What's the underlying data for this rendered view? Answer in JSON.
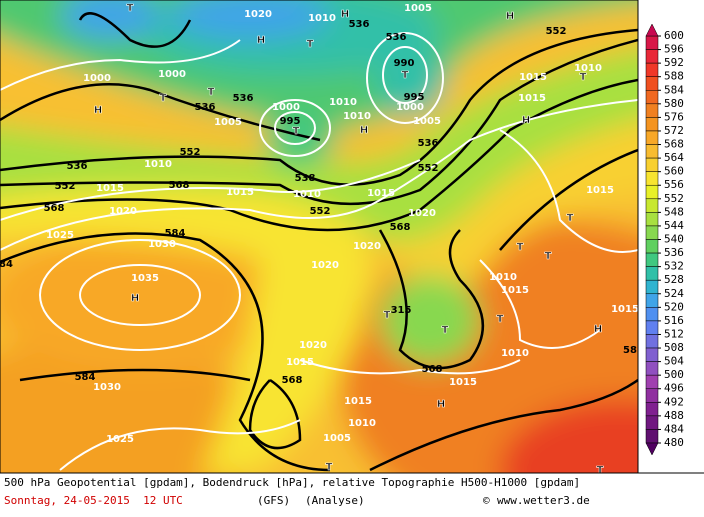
{
  "map": {
    "labels": [
      "1020",
      "H",
      "1010",
      "H",
      "536",
      "T",
      "T",
      "1000",
      "1000",
      "H",
      "T",
      "T",
      "536",
      "536",
      "1005",
      "1000",
      "995",
      "T",
      "1010",
      "1010",
      "H",
      "536",
      "990",
      "T",
      "995",
      "1000",
      "1005",
      "536",
      "1005",
      "H",
      "552",
      "1010",
      "1015",
      "1015",
      "H",
      "T",
      "536",
      "552",
      "1010",
      "552",
      "1015",
      "568",
      "568",
      "1020",
      "1015",
      "538",
      "1010",
      "552",
      "1015",
      "552",
      "1020",
      "568",
      "1020",
      "1025",
      "1030",
      "584",
      "84",
      "1035",
      "H",
      "1020",
      "1015",
      "T",
      "T",
      "T",
      "1010",
      "315",
      "T",
      "T",
      "1015",
      "T",
      "H",
      "1015",
      "1020",
      "1010",
      "568",
      "584",
      "1030",
      "568",
      "1015",
      "1015",
      "H",
      "1015",
      "1010",
      "1005",
      "1025",
      "T",
      "T",
      "58"
    ]
  },
  "colorbar": {
    "labels": [
      600,
      596,
      592,
      588,
      584,
      580,
      576,
      572,
      568,
      564,
      560,
      556,
      552,
      548,
      544,
      540,
      536,
      532,
      528,
      524,
      520,
      516,
      512,
      508,
      504,
      500,
      496,
      492,
      488,
      484,
      480
    ],
    "colors": [
      "#d81848",
      "#e82838",
      "#f03828",
      "#f05020",
      "#f06820",
      "#f08020",
      "#f49420",
      "#f8a828",
      "#f8bc30",
      "#f8d030",
      "#f8e430",
      "#e8f028",
      "#c8e830",
      "#a8e040",
      "#88d850",
      "#60d060",
      "#40c880",
      "#30c0a8",
      "#30b4d0",
      "#40a4e8",
      "#5090f0",
      "#6080f0",
      "#7070e0",
      "#8060d0",
      "#9050c0",
      "#a040b0",
      "#9030a0",
      "#802090",
      "#701880",
      "#601070"
    ],
    "above_color": "#c80850",
    "below_color": "#500060"
  },
  "footer": {
    "line1": "500 hPa Geopotential [gpdam], Bodendruck [hPa], relative Topographie H500-H1000 [gpdam]",
    "date": "Sonntag, 24-05-2015  12 UTC",
    "model": "(GFS)",
    "run": "(Analyse)",
    "copyright": "©",
    "site": "www.wetter3.de"
  }
}
